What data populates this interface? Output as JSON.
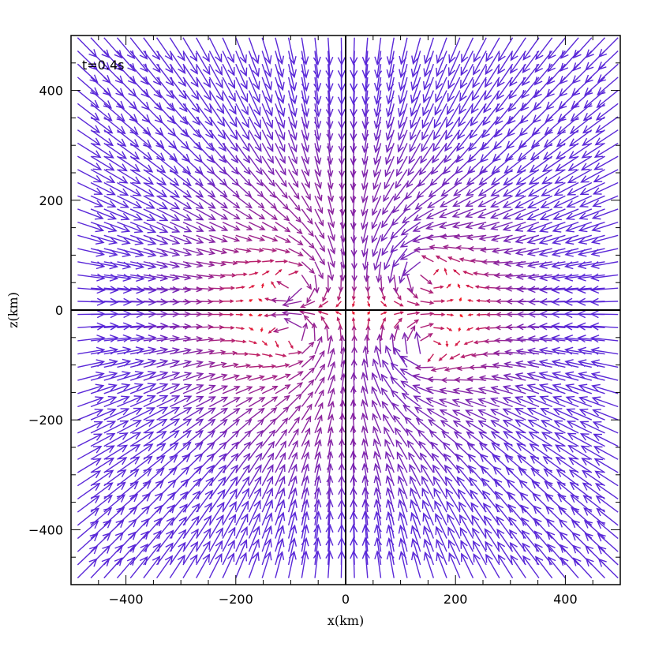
{
  "chart_data": {
    "type": "vector-field",
    "time_label": "t=0.4s",
    "xlabel": "x(km)",
    "ylabel": "z(km)",
    "xlim": [
      -500,
      500
    ],
    "ylim": [
      -500,
      500
    ],
    "x_ticks": [
      -400,
      -200,
      0,
      200,
      400
    ],
    "y_ticks": [
      -400,
      -200,
      0,
      200,
      400
    ],
    "x_tick_labels": [
      "−400",
      "−200",
      "0",
      "200",
      "400"
    ],
    "y_tick_labels": [
      "−400",
      "−200",
      "0",
      "200",
      "400"
    ],
    "zero_lines": true,
    "grid": false,
    "colors": {
      "fast": "#5a28d8",
      "slow": "#ff1a1a",
      "frame": "#000000"
    },
    "field": {
      "source": [
        0,
        0
      ],
      "vortices": [
        {
          "center": [
            140,
            80
          ],
          "sense": "ccw"
        },
        {
          "center": [
            140,
            -80
          ],
          "sense": "cw"
        },
        {
          "center": [
            -90,
            50
          ],
          "sense": "cw"
        },
        {
          "center": [
            -90,
            -50
          ],
          "sense": "ccw"
        }
      ]
    }
  }
}
